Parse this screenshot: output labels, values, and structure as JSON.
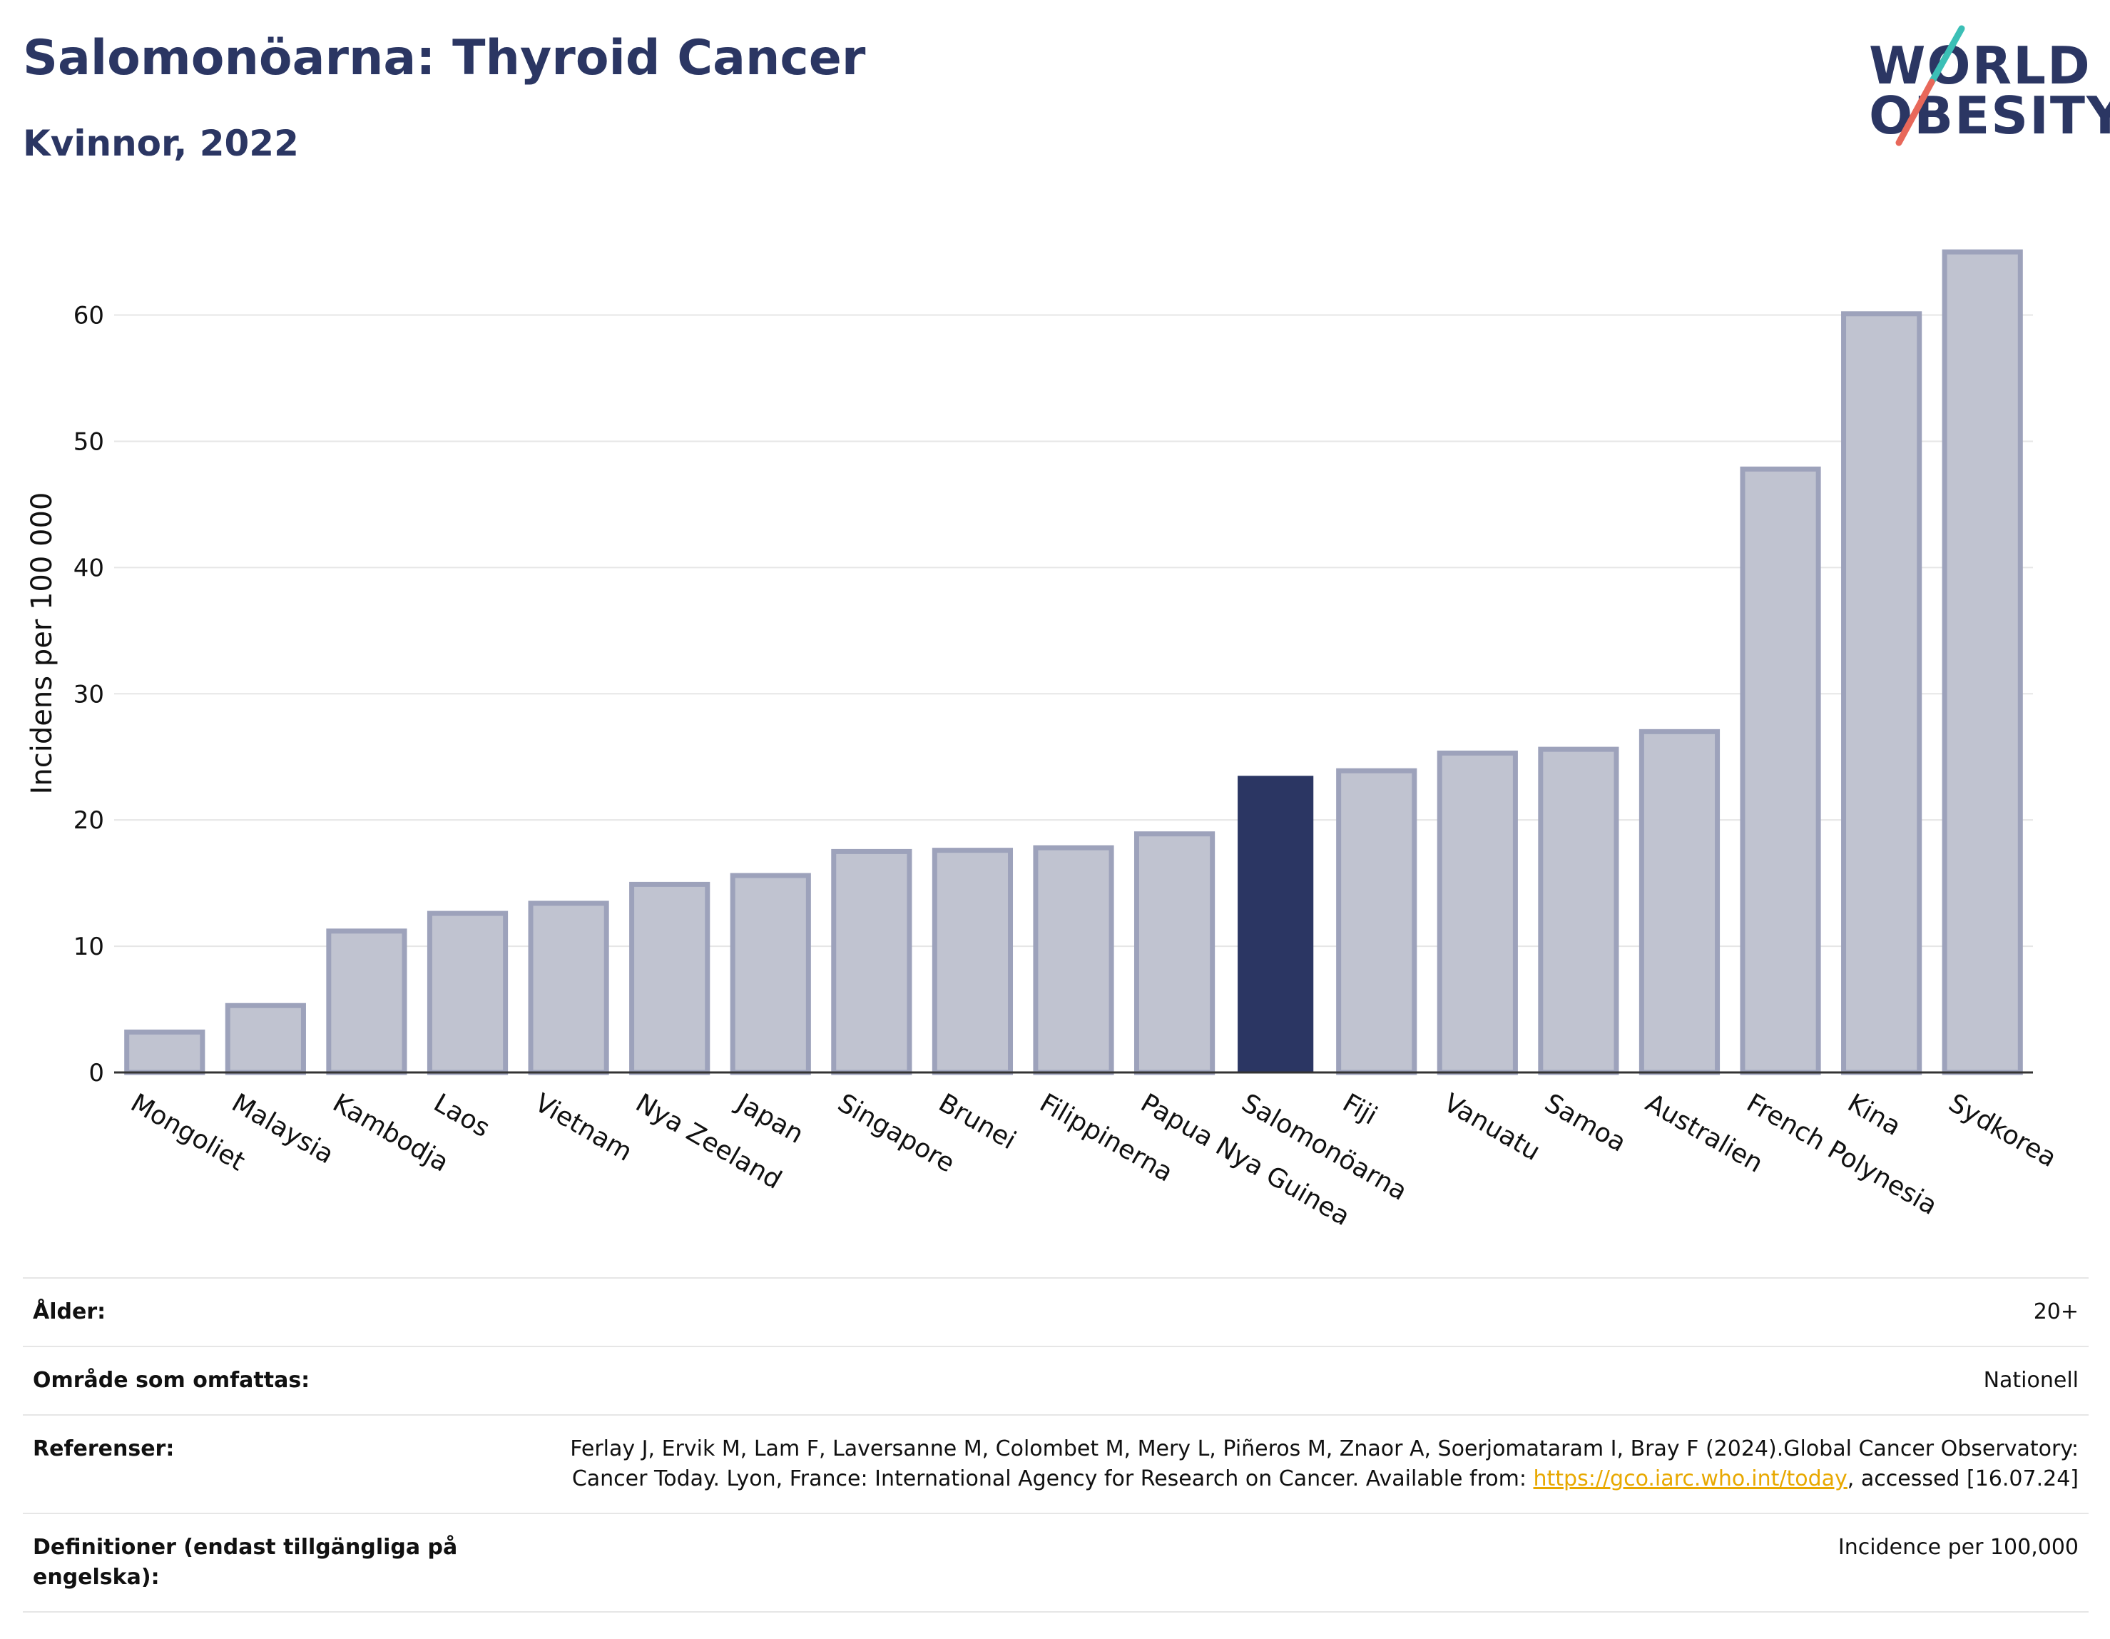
{
  "header": {
    "title": "Salomonöarna: Thyroid Cancer",
    "subtitle": "Kvinnor, 2022"
  },
  "logo": {
    "line1": "WORLD",
    "line2": "OBESITY"
  },
  "colors": {
    "highlight": "#2b3663",
    "bar_fill": "#c0c3d0",
    "bar_stroke": "#9da2bb",
    "grid": "#e6e6e6"
  },
  "chart_data": {
    "type": "bar",
    "title": "Salomonöarna: Thyroid Cancer",
    "xlabel": "",
    "ylabel": "Incidens per 100 000",
    "ylim": [
      0,
      68
    ],
    "yticks": [
      0,
      10,
      20,
      30,
      40,
      50,
      60
    ],
    "grid": true,
    "highlight": "Salomonöarna",
    "categories": [
      "Mongoliet",
      "Malaysia",
      "Kambodja",
      "Laos",
      "Vietnam",
      "Nya Zeeland",
      "Japan",
      "Singapore",
      "Brunei",
      "Filippinerna",
      "Papua Nya Guinea",
      "Salomonöarna",
      "Fiji",
      "Vanuatu",
      "Samoa",
      "Australien",
      "French Polynesia",
      "Kina",
      "Sydkorea"
    ],
    "values": [
      3.2,
      5.3,
      11.2,
      12.6,
      13.4,
      14.9,
      15.6,
      17.5,
      17.6,
      17.8,
      18.9,
      23.5,
      23.9,
      25.3,
      25.6,
      27.0,
      47.8,
      60.1,
      65.0
    ]
  },
  "meta": {
    "age_label": "Ålder:",
    "age_value": "20+",
    "area_label": "Område som omfattas:",
    "area_value": "Nationell",
    "refs_label": "Referenser:",
    "refs_text1": "Ferlay J, Ervik M, Lam F, Laversanne M, Colombet M, Mery L, Piñeros M, Znaor A, Soerjomataram I, Bray F (2024).Global Cancer Observatory: Cancer Today. Lyon, France: International Agency for Research on Cancer. Available from: ",
    "refs_link": "https://gco.iarc.who.int/today",
    "refs_text2": ", accessed [16.07.24]",
    "defs_label": "Definitioner (endast tillgängliga på engelska):",
    "defs_value": "Incidence per 100,000"
  }
}
